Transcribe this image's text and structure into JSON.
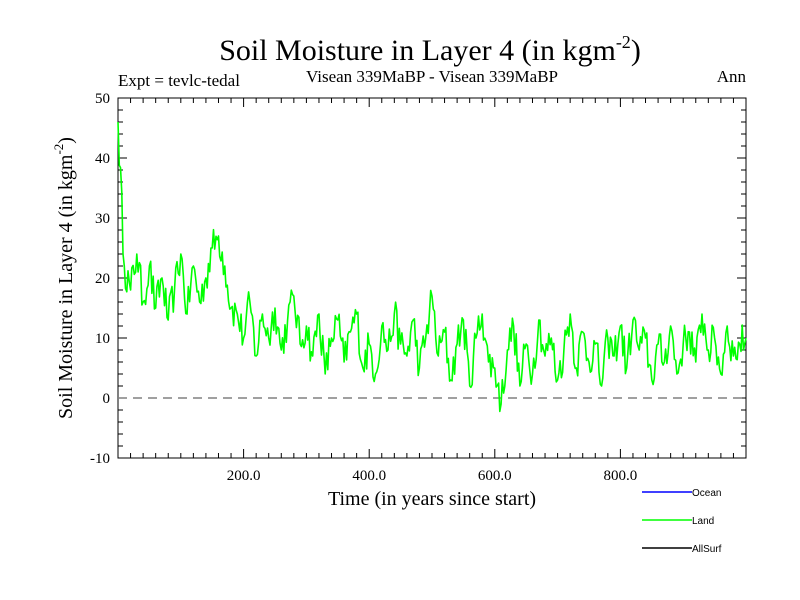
{
  "chart_data": {
    "type": "line",
    "title_main": "Soil Moisture in Layer 4 (in kgm",
    "title_sup": "-2",
    "title_close": ")",
    "subtitle_left": "Expt = tevlc-tedal",
    "subtitle_center": "Visean 339MaBP - Visean 339MaBP",
    "subtitle_right": "Ann",
    "xlabel": "Time (in years since start)",
    "ylabel_main": "Soil Moisture in Layer 4 (in kgm",
    "ylabel_sup": "-2",
    "ylabel_close": ")",
    "xlim": [
      0,
      1000
    ],
    "ylim": [
      -10,
      50
    ],
    "x_ticks": [
      200,
      400,
      600,
      800
    ],
    "x_tick_labels": [
      "200.0",
      "400.0",
      "600.0",
      "800.0"
    ],
    "y_ticks": [
      -10,
      0,
      10,
      20,
      30,
      40,
      50
    ],
    "y_tick_labels": [
      "-10",
      "0",
      "10",
      "20",
      "30",
      "40",
      "50"
    ],
    "reference_line": 0,
    "legend": [
      {
        "name": "Ocean",
        "color": "#0000ff"
      },
      {
        "name": "Land",
        "color": "#00ff00"
      },
      {
        "name": "AllSurf",
        "color": "#000000"
      }
    ],
    "series": [
      {
        "name": "Land",
        "color": "#00ff00",
        "x": [
          0,
          10,
          20,
          30,
          40,
          50,
          60,
          70,
          80,
          90,
          100,
          110,
          120,
          130,
          140,
          150,
          160,
          170,
          180,
          190,
          200,
          210,
          220,
          230,
          240,
          250,
          260,
          270,
          280,
          290,
          300,
          310,
          320,
          330,
          340,
          350,
          360,
          370,
          380,
          390,
          400,
          410,
          420,
          430,
          440,
          450,
          460,
          470,
          480,
          490,
          500,
          510,
          520,
          530,
          540,
          550,
          560,
          570,
          580,
          590,
          600,
          610,
          620,
          630,
          640,
          650,
          660,
          670,
          680,
          690,
          700,
          710,
          720,
          730,
          740,
          750,
          760,
          770,
          780,
          790,
          800,
          810,
          820,
          830,
          840,
          850,
          860,
          870,
          880,
          890,
          900,
          910,
          920,
          930,
          940,
          950,
          960,
          970,
          980,
          990,
          1000
        ],
        "values": [
          46,
          22,
          18,
          24,
          16,
          22,
          15,
          20,
          13,
          18,
          24,
          14,
          22,
          16,
          20,
          25,
          27,
          22,
          15,
          14,
          10,
          16,
          7,
          14,
          10,
          15,
          8,
          13,
          17,
          9,
          12,
          7,
          14,
          4,
          10,
          13,
          6,
          11,
          14,
          5,
          9,
          4,
          12,
          8,
          14,
          9,
          7,
          13,
          5,
          10,
          17,
          7,
          11,
          3,
          9,
          13,
          2,
          10,
          14,
          6,
          5,
          -1,
          8,
          12,
          2,
          9,
          4,
          13,
          7,
          10,
          3,
          8,
          14,
          5,
          11,
          6,
          9,
          2,
          10,
          7,
          12,
          5,
          13,
          8,
          10,
          3,
          9,
          6,
          12,
          4,
          9,
          11,
          6,
          14,
          8,
          10,
          4,
          12,
          7,
          9,
          10
        ]
      }
    ]
  }
}
